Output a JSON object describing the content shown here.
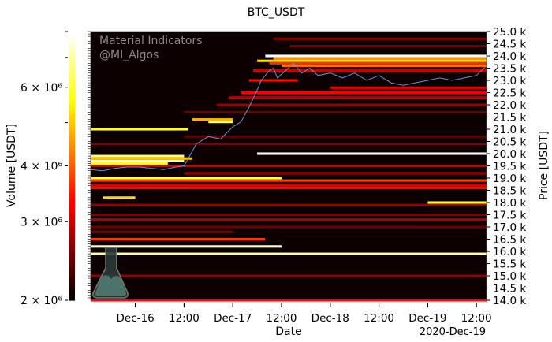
{
  "chart_data": {
    "type": "heatmap",
    "title": "BTC_USDT",
    "xlabel": "Date",
    "ylabel_left": "Volume [USDT]",
    "ylabel_right": "Price [USDT]",
    "watermark": [
      "Material Indicators",
      "@MI_Algos"
    ],
    "x_range": [
      "2020-12-15T13:00",
      "2020-12-19T14:30"
    ],
    "x_ticks": [
      {
        "t": "2020-12-16T00:00",
        "label": "Dec-16"
      },
      {
        "t": "2020-12-16T12:00",
        "label": "12:00"
      },
      {
        "t": "2020-12-17T00:00",
        "label": "Dec-17"
      },
      {
        "t": "2020-12-17T12:00",
        "label": "12:00"
      },
      {
        "t": "2020-12-18T00:00",
        "label": "Dec-18"
      },
      {
        "t": "2020-12-18T12:00",
        "label": "12:00"
      },
      {
        "t": "2020-12-19T00:00",
        "label": "Dec-19"
      },
      {
        "t": "2020-12-19T12:00",
        "label": "12:00"
      }
    ],
    "x_offset_label": "2020-Dec-19",
    "price_range": [
      14000,
      25000
    ],
    "price_ticks": [
      "14.0 k",
      "14.5 k",
      "15.0 k",
      "15.5 k",
      "16.0 k",
      "16.5 k",
      "17.0 k",
      "17.5 k",
      "18.0 k",
      "18.5 k",
      "19.0 k",
      "19.5 k",
      "20.0 k",
      "20.5 k",
      "21.0 k",
      "21.5 k",
      "22.0 k",
      "22.5 k",
      "23.0 k",
      "23.5 k",
      "24.0 k",
      "24.5 k",
      "25.0 k"
    ],
    "colorbar": {
      "colormap": "hot",
      "scale": "log",
      "range": [
        2000000,
        8000000
      ],
      "ticks": [
        {
          "v": 2000000,
          "label": "2 × 10⁶"
        },
        {
          "v": 3000000,
          "label": "3 × 10⁶"
        },
        {
          "v": 4000000,
          "label": "4 × 10⁶"
        },
        {
          "v": 6000000,
          "label": "6 × 10⁶"
        }
      ],
      "minor_ticks": [
        5000000,
        7000000,
        8000000
      ]
    },
    "price_line_color": "#6b8fd6",
    "price_series": [
      [
        "2020-12-15T13:00",
        19350
      ],
      [
        "2020-12-15T16:00",
        19300
      ],
      [
        "2020-12-15T19:00",
        19400
      ],
      [
        "2020-12-15T22:00",
        19450
      ],
      [
        "2020-12-16T01:00",
        19450
      ],
      [
        "2020-12-16T04:00",
        19400
      ],
      [
        "2020-12-16T07:00",
        19350
      ],
      [
        "2020-12-16T10:00",
        19450
      ],
      [
        "2020-12-16T12:00",
        19500
      ],
      [
        "2020-12-16T13:00",
        19800
      ],
      [
        "2020-12-16T15:00",
        20400
      ],
      [
        "2020-12-16T18:00",
        20700
      ],
      [
        "2020-12-16T21:00",
        20600
      ],
      [
        "2020-12-17T00:00",
        21100
      ],
      [
        "2020-12-17T02:00",
        21300
      ],
      [
        "2020-12-17T04:00",
        21900
      ],
      [
        "2020-12-17T06:00",
        22600
      ],
      [
        "2020-12-17T07:00",
        23000
      ],
      [
        "2020-12-17T09:00",
        23400
      ],
      [
        "2020-12-17T10:00",
        23500
      ],
      [
        "2020-12-17T11:00",
        23100
      ],
      [
        "2020-12-17T13:00",
        23400
      ],
      [
        "2020-12-17T15:00",
        23700
      ],
      [
        "2020-12-17T17:00",
        23300
      ],
      [
        "2020-12-17T19:00",
        23500
      ],
      [
        "2020-12-17T21:00",
        23200
      ],
      [
        "2020-12-18T00:00",
        23300
      ],
      [
        "2020-12-18T03:00",
        23100
      ],
      [
        "2020-12-18T06:00",
        23300
      ],
      [
        "2020-12-18T09:00",
        23000
      ],
      [
        "2020-12-18T12:00",
        23200
      ],
      [
        "2020-12-18T15:00",
        22900
      ],
      [
        "2020-12-18T18:00",
        22800
      ],
      [
        "2020-12-18T21:00",
        22900
      ],
      [
        "2020-12-19T00:00",
        23000
      ],
      [
        "2020-12-19T03:00",
        23100
      ],
      [
        "2020-12-19T06:00",
        23000
      ],
      [
        "2020-12-19T09:00",
        23100
      ],
      [
        "2020-12-19T12:00",
        23200
      ],
      [
        "2020-12-19T14:30",
        23600
      ]
    ],
    "bands": [
      [
        24700,
        "2020-12-17T10:00",
        "2020-12-19T14:30",
        2600000
      ],
      [
        24400,
        "2020-12-17T14:00",
        "2020-12-19T14:30",
        2500000
      ],
      [
        24000,
        "2020-12-17T08:00",
        "2020-12-19T14:30",
        8000000
      ],
      [
        23900,
        "2020-12-17T10:00",
        "2020-12-19T14:30",
        4500000
      ],
      [
        23800,
        "2020-12-17T06:00",
        "2020-12-19T14:30",
        5200000
      ],
      [
        23700,
        "2020-12-17T09:00",
        "2020-12-19T14:30",
        3600000
      ],
      [
        23600,
        "2020-12-17T12:00",
        "2020-12-19T14:30",
        4200000
      ],
      [
        23400,
        "2020-12-17T05:00",
        "2020-12-19T14:30",
        3000000
      ],
      [
        23000,
        "2020-12-17T04:00",
        "2020-12-17T16:00",
        3400000
      ],
      [
        22700,
        "2020-12-18T00:00",
        "2020-12-19T14:30",
        3200000
      ],
      [
        22500,
        "2020-12-17T02:00",
        "2020-12-19T14:30",
        3300000
      ],
      [
        22300,
        "2020-12-16T23:00",
        "2020-12-19T14:30",
        2900000
      ],
      [
        22000,
        "2020-12-16T20:00",
        "2020-12-19T14:30",
        2700000
      ],
      [
        21700,
        "2020-12-16T12:00",
        "2020-12-19T14:30",
        2500000
      ],
      [
        21400,
        "2020-12-16T14:00",
        "2020-12-17T00:00",
        4800000
      ],
      [
        21300,
        "2020-12-16T18:00",
        "2020-12-17T00:00",
        6500000
      ],
      [
        21000,
        "2020-12-15T13:00",
        "2020-12-16T13:00",
        5800000
      ],
      [
        20700,
        "2020-12-16T12:00",
        "2020-12-19T14:30",
        2400000
      ],
      [
        20400,
        "2020-12-15T13:00",
        "2020-12-19T14:30",
        2600000
      ],
      [
        20000,
        "2020-12-17T06:00",
        "2020-12-19T14:30",
        8000000
      ],
      [
        19900,
        "2020-12-15T13:00",
        "2020-12-16T12:00",
        6500000
      ],
      [
        19800,
        "2020-12-15T13:00",
        "2020-12-16T14:00",
        5000000
      ],
      [
        19700,
        "2020-12-15T13:00",
        "2020-12-16T12:00",
        7800000
      ],
      [
        19600,
        "2020-12-15T13:00",
        "2020-12-16T08:00",
        5800000
      ],
      [
        19500,
        "2020-12-15T13:00",
        "2020-12-19T14:30",
        3000000
      ],
      [
        19200,
        "2020-12-16T12:00",
        "2020-12-19T14:30",
        2700000
      ],
      [
        19000,
        "2020-12-15T13:00",
        "2020-12-17T12:00",
        6000000
      ],
      [
        18900,
        "2020-12-15T13:00",
        "2020-12-19T14:30",
        3800000
      ],
      [
        18700,
        "2020-12-15T13:00",
        "2020-12-19T14:30",
        3100000
      ],
      [
        18600,
        "2020-12-15T13:00",
        "2020-12-19T14:30",
        3400000
      ],
      [
        18200,
        "2020-12-15T16:00",
        "2020-12-16T00:00",
        5200000
      ],
      [
        18000,
        "2020-12-19T00:00",
        "2020-12-19T14:30",
        5600000
      ],
      [
        17900,
        "2020-12-15T13:00",
        "2020-12-19T14:30",
        2700000
      ],
      [
        17500,
        "2020-12-15T13:00",
        "2020-12-19T14:30",
        2600000
      ],
      [
        17300,
        "2020-12-15T13:00",
        "2020-12-19T14:30",
        2800000
      ],
      [
        17000,
        "2020-12-15T13:00",
        "2020-12-19T14:30",
        2500000
      ],
      [
        16800,
        "2020-12-15T13:00",
        "2020-12-17T00:00",
        2600000
      ],
      [
        16500,
        "2020-12-15T13:00",
        "2020-12-17T08:00",
        3700000
      ],
      [
        16200,
        "2020-12-15T13:00",
        "2020-12-17T12:00",
        7500000
      ],
      [
        15900,
        "2020-12-15T13:00",
        "2020-12-19T14:30",
        7000000
      ],
      [
        15000,
        "2020-12-15T13:00",
        "2020-12-19T14:30",
        2700000
      ],
      [
        14000,
        "2020-12-15T13:00",
        "2020-12-19T14:30",
        3300000
      ]
    ]
  }
}
